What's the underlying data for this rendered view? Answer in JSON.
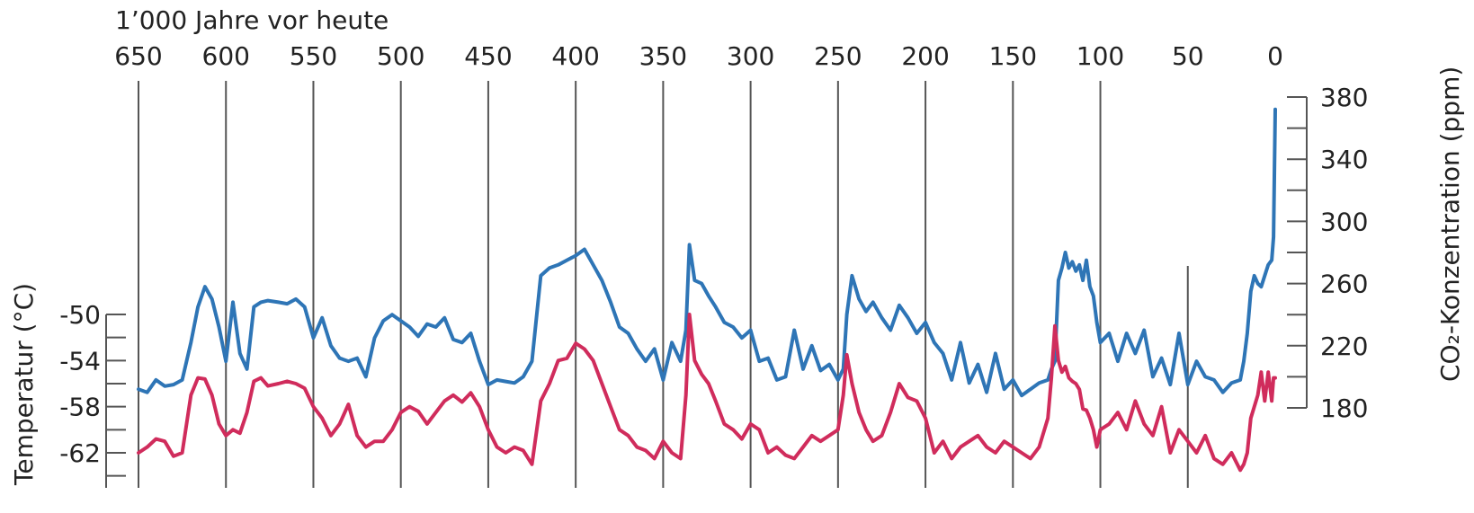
{
  "chart_data": {
    "type": "line",
    "xlabel": "1’000 Jahre vor heute",
    "xlim": [
      650,
      0
    ],
    "x_ticks": [
      "650",
      "600",
      "550",
      "500",
      "450",
      "400",
      "350",
      "300",
      "250",
      "200",
      "150",
      "100",
      "50",
      "0"
    ],
    "grid": "vertical",
    "y_left": {
      "label": "Temperatur (°C)",
      "ticks": [
        "-50",
        "-54",
        "-58",
        "-62"
      ],
      "range": [
        -64,
        -50
      ]
    },
    "y_right": {
      "label": "CO₂-Konzentration (ppm)",
      "ticks": [
        "380",
        "340",
        "300",
        "260",
        "220",
        "180"
      ],
      "range": [
        180,
        380
      ]
    },
    "series": [
      {
        "axis": "right",
        "color": "#2e75b6",
        "x": [
          650,
          645,
          640,
          635,
          630,
          625,
          620,
          616,
          612,
          608,
          604,
          600,
          596,
          592,
          588,
          584,
          580,
          576,
          570,
          565,
          560,
          555,
          550,
          545,
          540,
          535,
          530,
          525,
          520,
          515,
          510,
          505,
          500,
          495,
          490,
          485,
          480,
          475,
          470,
          465,
          460,
          455,
          450,
          445,
          440,
          435,
          430,
          425,
          420,
          415,
          410,
          405,
          400,
          395,
          390,
          385,
          380,
          375,
          370,
          365,
          360,
          355,
          350,
          345,
          340,
          337,
          335,
          332,
          328,
          324,
          320,
          315,
          310,
          305,
          300,
          295,
          290,
          285,
          280,
          275,
          270,
          265,
          260,
          255,
          250,
          247,
          245,
          242,
          238,
          234,
          230,
          225,
          220,
          215,
          210,
          205,
          200,
          195,
          190,
          185,
          180,
          175,
          170,
          165,
          160,
          155,
          150,
          145,
          140,
          135,
          130,
          128,
          126,
          124,
          122,
          120,
          118,
          116,
          114,
          112,
          110,
          108,
          106,
          104,
          102,
          100,
          95,
          90,
          85,
          80,
          75,
          70,
          65,
          60,
          55,
          50,
          45,
          40,
          35,
          30,
          25,
          20,
          18,
          16,
          14,
          12,
          10,
          8,
          6,
          4,
          2,
          1,
          0
        ],
        "values": [
          192,
          190,
          198,
          194,
          195,
          198,
          222,
          245,
          258,
          250,
          232,
          210,
          248,
          215,
          205,
          245,
          248,
          249,
          248,
          247,
          250,
          245,
          225,
          238,
          220,
          212,
          210,
          212,
          200,
          225,
          236,
          240,
          236,
          232,
          226,
          234,
          232,
          238,
          224,
          222,
          228,
          210,
          195,
          198,
          197,
          196,
          200,
          210,
          265,
          270,
          272,
          275,
          278,
          282,
          272,
          262,
          248,
          232,
          228,
          218,
          210,
          218,
          198,
          222,
          210,
          230,
          285,
          262,
          260,
          252,
          245,
          235,
          232,
          225,
          230,
          210,
          212,
          198,
          200,
          230,
          205,
          220,
          204,
          208,
          198,
          205,
          240,
          265,
          250,
          242,
          248,
          238,
          230,
          246,
          238,
          228,
          235,
          222,
          215,
          198,
          222,
          196,
          208,
          190,
          215,
          192,
          198,
          188,
          192,
          196,
          198,
          205,
          210,
          262,
          270,
          280,
          270,
          274,
          268,
          272,
          262,
          275,
          258,
          252,
          235,
          222,
          228,
          210,
          228,
          215,
          230,
          200,
          212,
          195,
          228,
          195,
          210,
          200,
          198,
          190,
          196,
          198,
          210,
          228,
          255,
          265,
          260,
          258,
          265,
          272,
          275,
          290,
          372
        ]
      },
      {
        "axis": "left",
        "color": "#d02c5c",
        "x": [
          650,
          645,
          640,
          635,
          630,
          625,
          620,
          616,
          612,
          608,
          604,
          600,
          596,
          592,
          588,
          584,
          580,
          576,
          570,
          565,
          560,
          555,
          550,
          545,
          540,
          535,
          530,
          525,
          520,
          515,
          510,
          505,
          500,
          495,
          490,
          485,
          480,
          475,
          470,
          465,
          460,
          455,
          450,
          445,
          440,
          435,
          430,
          425,
          420,
          415,
          410,
          405,
          400,
          395,
          390,
          385,
          380,
          375,
          370,
          365,
          360,
          355,
          350,
          345,
          340,
          337,
          335,
          332,
          328,
          324,
          320,
          315,
          310,
          305,
          300,
          295,
          290,
          285,
          280,
          275,
          270,
          265,
          260,
          255,
          250,
          247,
          245,
          242,
          238,
          234,
          230,
          225,
          220,
          215,
          210,
          205,
          200,
          195,
          190,
          185,
          180,
          175,
          170,
          165,
          160,
          155,
          150,
          145,
          140,
          135,
          130,
          128,
          126,
          124,
          122,
          120,
          118,
          116,
          114,
          112,
          110,
          108,
          106,
          104,
          102,
          100,
          95,
          90,
          85,
          80,
          75,
          70,
          65,
          60,
          55,
          50,
          45,
          40,
          35,
          30,
          25,
          20,
          18,
          16,
          14,
          12,
          10,
          8,
          6,
          4,
          2,
          1,
          0
        ],
        "values": [
          -62,
          -61.5,
          -60.8,
          -61,
          -62.3,
          -62,
          -57,
          -55.5,
          -55.6,
          -57,
          -59.5,
          -60.5,
          -60,
          -60.3,
          -58.5,
          -55.8,
          -55.5,
          -56.2,
          -56,
          -55.8,
          -56,
          -56.4,
          -58,
          -59,
          -60.5,
          -59.5,
          -57.8,
          -60.5,
          -61.5,
          -61,
          -61,
          -60,
          -58.5,
          -58,
          -58.4,
          -59.5,
          -58.5,
          -57.5,
          -57,
          -57.6,
          -56.8,
          -58,
          -60,
          -61.5,
          -62,
          -61.5,
          -61.8,
          -63,
          -57.5,
          -56,
          -54,
          -53.8,
          -52.5,
          -53,
          -54,
          -56,
          -58,
          -60,
          -60.5,
          -61.5,
          -61.8,
          -62.5,
          -61,
          -62,
          -62.5,
          -57,
          -50,
          -54,
          -55.2,
          -56,
          -57.5,
          -59.5,
          -60,
          -60.8,
          -59.5,
          -60,
          -62,
          -61.5,
          -62.2,
          -62.5,
          -61.5,
          -60.5,
          -61,
          -60.5,
          -60,
          -57,
          -53.5,
          -56,
          -58.5,
          -60,
          -61,
          -60.5,
          -58.5,
          -56,
          -57.2,
          -57.5,
          -59,
          -62,
          -61,
          -62.5,
          -61.5,
          -61,
          -60.5,
          -61.5,
          -62,
          -61,
          -61.5,
          -62,
          -62.5,
          -61.5,
          -59,
          -55.5,
          -51,
          -54,
          -55,
          -54.5,
          -55.5,
          -55.8,
          -56,
          -56.5,
          -58.2,
          -58.3,
          -59,
          -60,
          -61.5,
          -60,
          -59.5,
          -58.5,
          -60,
          -57.5,
          -59.5,
          -60.5,
          -58,
          -62,
          -60,
          -61,
          -62,
          -60.5,
          -62.5,
          -63,
          -62,
          -63.5,
          -63,
          -62,
          -59,
          -58,
          -57,
          -55,
          -57.5,
          -55,
          -57.5,
          -55.5,
          -55.5
        ]
      }
    ]
  }
}
